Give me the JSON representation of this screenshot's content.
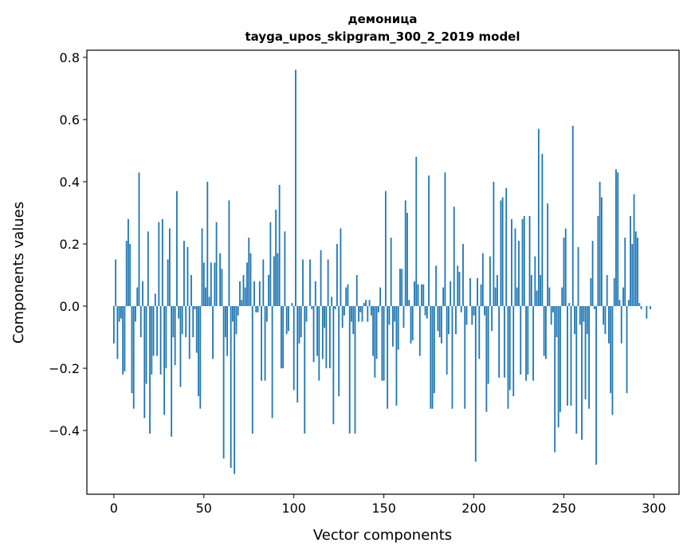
{
  "chart_data": {
    "type": "bar",
    "title": "демоница",
    "subtitle": "tayga_upos_skipgram_300_2_2019 model",
    "xlabel": "Vector components",
    "ylabel": "Components values",
    "xlim": [
      -15,
      314
    ],
    "ylim": [
      -0.605,
      0.823
    ],
    "xticks": [
      0,
      50,
      100,
      150,
      200,
      250,
      300
    ],
    "xtick_labels": [
      "0",
      "50",
      "100",
      "150",
      "200",
      "250",
      "300"
    ],
    "yticks": [
      -0.4,
      -0.2,
      0.0,
      0.2,
      0.4,
      0.6,
      0.8
    ],
    "ytick_labels": [
      "−0.4",
      "−0.2",
      "0.0",
      "0.2",
      "0.4",
      "0.6",
      "0.8"
    ],
    "grid": false,
    "color": "#1f77b4",
    "values": [
      -0.12,
      0.15,
      -0.17,
      -0.05,
      -0.04,
      -0.22,
      -0.21,
      0.21,
      0.28,
      0.2,
      -0.28,
      -0.33,
      -0.05,
      0.06,
      0.43,
      -0.1,
      0.08,
      -0.36,
      -0.25,
      0.24,
      -0.41,
      -0.22,
      -0.16,
      0.04,
      -0.16,
      0.27,
      -0.22,
      0.28,
      -0.35,
      -0.2,
      0.15,
      0.25,
      -0.42,
      -0.1,
      -0.19,
      0.37,
      -0.04,
      -0.26,
      -0.09,
      0.21,
      -0.1,
      0.19,
      -0.17,
      0.1,
      -0.1,
      -0.01,
      -0.15,
      -0.29,
      -0.33,
      0.25,
      0.14,
      0.06,
      0.4,
      0.03,
      0.14,
      -0.17,
      0.14,
      0.27,
      0.0,
      0.17,
      0.12,
      -0.49,
      -0.1,
      -0.16,
      0.34,
      -0.52,
      -0.05,
      -0.54,
      -0.09,
      -0.03,
      0.08,
      0.02,
      0.1,
      0.06,
      0.14,
      0.22,
      0.17,
      -0.41,
      0.08,
      -0.02,
      -0.02,
      0.08,
      -0.24,
      0.15,
      -0.24,
      -0.05,
      0.1,
      0.27,
      -0.36,
      0.16,
      0.31,
      0.17,
      0.39,
      -0.2,
      -0.2,
      0.24,
      -0.09,
      -0.08,
      0.0,
      0.01,
      -0.27,
      0.76,
      -0.31,
      -0.12,
      -0.1,
      0.15,
      -0.41,
      -0.05,
      0.0,
      0.15,
      -0.01,
      -0.18,
      0.08,
      -0.16,
      -0.24,
      0.18,
      -0.17,
      -0.07,
      -0.2,
      0.15,
      -0.2,
      0.03,
      -0.38,
      -0.01,
      0.2,
      -0.29,
      0.25,
      -0.07,
      -0.03,
      0.06,
      0.07,
      -0.41,
      -0.05,
      -0.09,
      -0.41,
      0.1,
      -0.05,
      -0.02,
      -0.05,
      0.01,
      0.02,
      -0.05,
      0.02,
      -0.03,
      -0.16,
      -0.23,
      -0.17,
      -0.02,
      0.06,
      -0.24,
      -0.24,
      0.37,
      -0.33,
      -0.06,
      0.22,
      -0.13,
      -0.05,
      -0.32,
      -0.14,
      0.12,
      0.12,
      -0.07,
      0.34,
      0.3,
      0.02,
      -0.12,
      -0.11,
      0.08,
      0.48,
      0.07,
      -0.16,
      0.07,
      0.07,
      -0.03,
      -0.04,
      0.42,
      -0.33,
      -0.33,
      -0.28,
      0.13,
      -0.08,
      -0.1,
      -0.12,
      0.06,
      0.43,
      -0.22,
      -0.09,
      0.08,
      -0.33,
      0.32,
      -0.09,
      0.13,
      0.11,
      -0.02,
      0.2,
      -0.33,
      -0.06,
      0.0,
      0.09,
      -0.06,
      -0.03,
      -0.5,
      0.09,
      -0.17,
      0.07,
      0.17,
      -0.03,
      -0.34,
      -0.25,
      0.16,
      -0.08,
      0.4,
      0.06,
      0.1,
      -0.23,
      0.34,
      0.35,
      -0.23,
      0.38,
      -0.33,
      -0.27,
      0.28,
      -0.29,
      0.25,
      0.06,
      0.21,
      -0.22,
      0.28,
      0.29,
      -0.24,
      -0.22,
      0.29,
      0.1,
      -0.24,
      0.16,
      0.05,
      0.57,
      0.1,
      0.49,
      -0.16,
      -0.17,
      0.33,
      0.06,
      -0.06,
      -0.02,
      -0.47,
      -0.1,
      -0.39,
      -0.34,
      0.06,
      0.22,
      0.25,
      -0.32,
      0.01,
      -0.32,
      0.58,
      -0.09,
      -0.41,
      0.19,
      -0.06,
      -0.43,
      -0.05,
      -0.3,
      -0.09,
      -0.33,
      0.09,
      0.21,
      -0.01,
      -0.51,
      0.29,
      0.4,
      0.35,
      -0.06,
      -0.09,
      0.1,
      -0.12,
      -0.28,
      -0.35,
      0.09,
      0.44,
      0.43,
      0.02,
      -0.12,
      0.06,
      0.22,
      -0.28,
      0.02,
      0.29,
      0.2,
      0.36,
      0.24,
      0.22,
      0.01,
      -0.01,
      0.0,
      0.0,
      -0.04,
      0.0,
      -0.01,
      0.0
    ]
  }
}
